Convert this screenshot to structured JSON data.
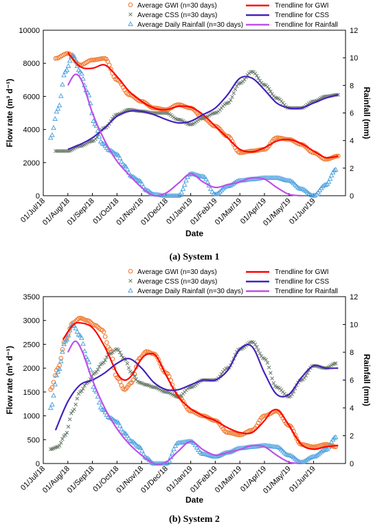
{
  "colors": {
    "gwi_marker": "#F07A2F",
    "gwi_trend": "#FF0000",
    "css_marker": "#6F7F6F",
    "css_trend": "#4422BB",
    "rain_marker": "#4FA3E0",
    "rain_trend": "#BE4FE8"
  },
  "legend_labels": {
    "gwi": "Average GWI  (n=30 days)",
    "css": "Average CSS  (n=30 days)",
    "rain": "Average Daily Rainfall  (n=30 days)",
    "gwi_trend": "Trendline for GWI",
    "css_trend": "Trendline for CSS",
    "rain_trend": "Trendline for Rainfall"
  },
  "legend_labels_s2": {
    "gwi": "Average GWI   (n=30 days)",
    "css": "Average CSS   (n=30 days)",
    "rain": "Average Daily Rainfall  (n=30 days)",
    "gwi_trend": "Trendline for GWI",
    "css_trend": "Trendline for CSS",
    "rain_trend": "Trendline for Rainfall"
  },
  "chart_data": [
    {
      "type": "scatter",
      "caption": "(a) System 1",
      "xlabel": "Date",
      "ylabel_left": "Flow rate (m³ d⁻¹)",
      "ylabel_right": "Rainfall (mm)",
      "x_categories": [
        "01/Jul/18",
        "01/Aug/18",
        "01/Sep/18",
        "01/Oct/18",
        "01/Nov/18",
        "01/Dec/18",
        "01/Jan/19",
        "01/Feb/19",
        "01/Mar/19",
        "01/Apr/19",
        "01/May/19",
        "01/Jun/19"
      ],
      "y_left": {
        "min": 0,
        "max": 10000,
        "ticks": [
          "0",
          "2000",
          "4000",
          "6000",
          "8000",
          "10000"
        ]
      },
      "y_right": {
        "min": 0,
        "max": 12,
        "ticks": [
          "0",
          "2",
          "4",
          "6",
          "8",
          "10",
          "12"
        ]
      },
      "x_range_months": [
        0,
        12.3
      ],
      "series": [
        {
          "name": "Average GWI  (n=30 days)",
          "axis": "left",
          "x": [
            0.5,
            1.0,
            1.5,
            2.0,
            2.5,
            3.0,
            3.5,
            4.0,
            4.5,
            5.0,
            5.5,
            6.0,
            6.5,
            7.0,
            7.5,
            8.0,
            8.5,
            9.0,
            9.5,
            10.0,
            10.5,
            11.0,
            11.5,
            12.0
          ],
          "y": [
            8300,
            8600,
            7900,
            8200,
            8300,
            7000,
            6100,
            5700,
            5300,
            5200,
            5500,
            5300,
            4700,
            4200,
            3600,
            2600,
            2700,
            2800,
            3500,
            3400,
            3100,
            2600,
            2200,
            2400
          ]
        },
        {
          "name": "Average CSS  (n=30 days)",
          "axis": "left",
          "x": [
            0.5,
            1.0,
            1.5,
            2.0,
            2.5,
            3.0,
            3.5,
            4.0,
            4.5,
            5.0,
            5.5,
            6.0,
            6.5,
            7.0,
            7.5,
            8.0,
            8.5,
            9.0,
            9.5,
            10.0,
            10.5,
            11.0,
            11.5,
            12.0
          ],
          "y": [
            2700,
            2700,
            3000,
            3300,
            4100,
            4900,
            5200,
            5100,
            5000,
            5000,
            4600,
            4300,
            4700,
            5000,
            5600,
            6800,
            7500,
            6700,
            5900,
            5300,
            5300,
            5700,
            6000,
            6100
          ]
        },
        {
          "name": "Average Daily Rainfall  (n=30 days)",
          "axis": "right",
          "x": [
            0.3,
            0.6,
            0.9,
            1.2,
            1.5,
            1.8,
            2.1,
            2.4,
            2.7,
            3.0,
            3.3,
            3.6,
            3.9,
            4.2,
            4.5,
            5.0,
            5.5,
            6.0,
            6.5,
            7.0,
            7.5,
            8.0,
            8.5,
            9.0,
            9.5,
            10.0,
            10.5,
            11.0,
            11.5,
            11.9
          ],
          "y": [
            4.2,
            6.3,
            9.0,
            10.2,
            9.0,
            7.5,
            5.2,
            3.8,
            3.3,
            3.0,
            2.2,
            1.4,
            1.1,
            0.4,
            0.1,
            0.0,
            0.0,
            1.6,
            1.4,
            0.1,
            0.7,
            1.1,
            1.2,
            1.3,
            1.3,
            1.1,
            0.5,
            0.0,
            0.8,
            1.9
          ]
        },
        {
          "name": "Trendline for GWI",
          "axis": "left",
          "kind": "trend",
          "x": [
            1.0,
            1.5,
            2.0,
            2.5,
            3.0,
            3.5,
            4.0,
            4.5,
            5.0,
            5.5,
            6.0,
            6.5,
            7.0,
            7.5,
            8.0,
            8.5,
            9.0,
            9.5,
            10.0,
            10.5,
            11.0,
            11.5,
            12.0
          ],
          "y": [
            8650,
            7800,
            7700,
            7900,
            7200,
            6300,
            5700,
            5300,
            5200,
            5400,
            5350,
            4900,
            4200,
            3500,
            2800,
            2650,
            2900,
            3300,
            3400,
            3150,
            2700,
            2300,
            2400
          ]
        },
        {
          "name": "Trendline for CSS",
          "axis": "left",
          "kind": "trend",
          "x": [
            1.0,
            1.5,
            2.0,
            2.5,
            3.0,
            3.5,
            4.0,
            4.5,
            5.0,
            5.5,
            6.0,
            6.5,
            7.0,
            7.5,
            8.0,
            8.5,
            9.0,
            9.5,
            10.0,
            10.5,
            11.0,
            11.5,
            12.0
          ],
          "y": [
            2800,
            3100,
            3500,
            4100,
            4800,
            5100,
            5100,
            4900,
            4600,
            4400,
            4500,
            4900,
            5300,
            6100,
            7100,
            7100,
            6400,
            5600,
            5300,
            5300,
            5600,
            5900,
            6100
          ]
        },
        {
          "name": "Trendline for Rainfall",
          "axis": "right",
          "kind": "trend",
          "x": [
            1.0,
            1.3,
            1.6,
            2.0,
            2.5,
            3.0,
            3.5,
            4.0,
            4.5,
            5.0,
            5.5,
            6.0,
            6.5,
            7.0,
            7.5,
            8.0,
            8.5,
            9.0,
            9.5,
            10.0,
            10.5
          ],
          "y": [
            8.0,
            8.8,
            8.2,
            6.0,
            4.0,
            2.5,
            1.5,
            0.6,
            0.0,
            0.2,
            0.9,
            1.6,
            1.0,
            0.6,
            0.8,
            1.0,
            1.3,
            1.2,
            0.6,
            0.1,
            0.0
          ]
        }
      ]
    },
    {
      "type": "scatter",
      "caption": "(b) System 2",
      "xlabel": "Date",
      "ylabel_left": "Flow rate (m³ d⁻¹)",
      "ylabel_right": "Rainfall (mm)",
      "x_categories": [
        "01/Jul/18",
        "01/Aug/18",
        "01/Sep/18",
        "01/Oct/18",
        "01/Nov/18",
        "01/Dec/18",
        "01/Jan/19",
        "01/Feb/19",
        "01/Mar/19",
        "01/Apr/19",
        "01/May/19",
        "01/Jun/19"
      ],
      "y_left": {
        "min": 0,
        "max": 3500,
        "ticks": [
          "0",
          "500",
          "1000",
          "1500",
          "2000",
          "2500",
          "3000",
          "3500"
        ]
      },
      "y_right": {
        "min": 0,
        "max": 12,
        "ticks": [
          "0",
          "2",
          "4",
          "6",
          "8",
          "10",
          "12"
        ]
      },
      "x_range_months": [
        0,
        12.3
      ],
      "series": [
        {
          "name": "Average GWI   (n=30 days)",
          "axis": "left",
          "x": [
            0.3,
            0.6,
            0.9,
            1.2,
            1.5,
            1.8,
            2.1,
            2.4,
            2.7,
            3.0,
            3.3,
            3.6,
            3.9,
            4.2,
            4.5,
            5.0,
            5.5,
            6.0,
            6.5,
            7.0,
            7.5,
            8.0,
            8.5,
            9.0,
            9.5,
            10.0,
            10.5,
            11.0,
            11.5,
            11.9
          ],
          "y": [
            1550,
            2000,
            2600,
            2950,
            3050,
            3000,
            2900,
            2800,
            2400,
            1800,
            1550,
            1700,
            2200,
            2350,
            2300,
            1900,
            1400,
            1100,
            1000,
            900,
            650,
            600,
            700,
            1000,
            1100,
            800,
            400,
            350,
            400,
            350
          ]
        },
        {
          "name": "Average CSS   (n=30 days)",
          "axis": "left",
          "x": [
            0.3,
            0.6,
            0.9,
            1.2,
            1.5,
            1.8,
            2.1,
            2.4,
            2.7,
            3.0,
            3.3,
            3.6,
            3.9,
            4.2,
            4.5,
            5.0,
            5.5,
            6.0,
            6.5,
            7.0,
            7.5,
            8.0,
            8.5,
            9.0,
            9.5,
            10.0,
            10.5,
            11.0,
            11.5,
            11.9
          ],
          "y": [
            300,
            350,
            600,
            1100,
            1500,
            1700,
            1900,
            2100,
            2300,
            2400,
            2200,
            1900,
            1700,
            1650,
            1600,
            1500,
            1400,
            1600,
            1750,
            1750,
            2000,
            2400,
            2550,
            2200,
            1600,
            1400,
            1750,
            2050,
            2000,
            2100
          ]
        },
        {
          "name": "Average Daily Rainfall  (n=30 days)",
          "axis": "right",
          "x": [
            0.3,
            0.6,
            0.9,
            1.2,
            1.5,
            1.8,
            2.1,
            2.4,
            2.7,
            3.0,
            3.3,
            3.6,
            3.9,
            4.2,
            4.5,
            5.0,
            5.5,
            6.0,
            6.5,
            7.0,
            7.5,
            8.0,
            8.5,
            9.0,
            9.5,
            10.0,
            10.5,
            11.0,
            11.5,
            11.9
          ],
          "y": [
            4.0,
            6.6,
            8.8,
            10.0,
            9.2,
            7.5,
            5.3,
            3.9,
            3.3,
            3.0,
            2.2,
            1.6,
            1.2,
            0.4,
            0.0,
            0.0,
            1.5,
            1.6,
            0.7,
            0.5,
            0.8,
            1.1,
            1.2,
            1.3,
            1.2,
            0.6,
            0.1,
            0.5,
            1.0,
            1.9
          ]
        },
        {
          "name": "Trendline for GWI",
          "axis": "left",
          "kind": "trend",
          "x": [
            0.8,
            1.2,
            1.5,
            2.0,
            2.5,
            3.0,
            3.3,
            3.6,
            4.0,
            4.3,
            4.6,
            5.0,
            5.5,
            6.0,
            6.5,
            7.0,
            7.5,
            8.0,
            8.5,
            9.0,
            9.3,
            9.6,
            10.0,
            10.5,
            11.0,
            11.5,
            12.0
          ],
          "y": [
            2600,
            2900,
            2950,
            2850,
            2450,
            1900,
            1750,
            1850,
            2200,
            2300,
            2250,
            1850,
            1400,
            1150,
            1000,
            900,
            750,
            650,
            650,
            900,
            1100,
            1100,
            800,
            400,
            300,
            350,
            380
          ]
        },
        {
          "name": "Trendline for CSS",
          "axis": "left",
          "kind": "trend",
          "x": [
            0.5,
            1.0,
            1.5,
            2.0,
            2.5,
            3.0,
            3.5,
            4.0,
            4.5,
            5.0,
            5.5,
            6.0,
            6.5,
            7.0,
            7.5,
            8.0,
            8.5,
            9.0,
            9.5,
            10.0,
            10.5,
            11.0,
            11.5,
            12.0
          ],
          "y": [
            700,
            1300,
            1650,
            1750,
            1900,
            2100,
            2200,
            2000,
            1700,
            1550,
            1550,
            1650,
            1750,
            1750,
            1950,
            2400,
            2450,
            1900,
            1450,
            1450,
            1800,
            2050,
            2000,
            2000
          ]
        },
        {
          "name": "Trendline for Rainfall",
          "axis": "right",
          "kind": "trend",
          "x": [
            1.0,
            1.3,
            1.6,
            2.0,
            2.5,
            3.0,
            3.5,
            4.0,
            4.5,
            5.0,
            5.5,
            6.0,
            6.5,
            7.0,
            7.5,
            8.0,
            8.5,
            9.0,
            9.5,
            10.0,
            10.5
          ],
          "y": [
            8.0,
            8.8,
            8.0,
            6.0,
            4.0,
            2.5,
            1.4,
            0.6,
            0.0,
            0.1,
            0.9,
            1.6,
            1.0,
            0.6,
            0.8,
            1.0,
            1.3,
            1.2,
            0.6,
            0.1,
            0.0
          ]
        }
      ]
    }
  ]
}
